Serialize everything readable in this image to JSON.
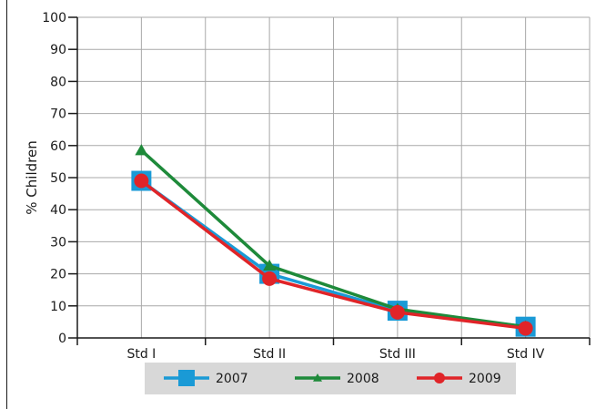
{
  "chart_data": {
    "type": "line",
    "categories": [
      "Std I",
      "Std II",
      "Std III",
      "Std IV"
    ],
    "ylabel": "% Children",
    "ylim": [
      0,
      100
    ],
    "yticks": [
      0,
      10,
      20,
      30,
      40,
      50,
      60,
      70,
      80,
      90,
      100
    ],
    "grid": true,
    "legend_position": "bottom",
    "series": [
      {
        "name": "2007",
        "values": [
          49,
          20,
          8.5,
          3.5
        ],
        "color": "#1a9ad6",
        "marker": "square"
      },
      {
        "name": "2008",
        "values": [
          58.5,
          22.5,
          9,
          3.5
        ],
        "color": "#1e8a3a",
        "marker": "triangle"
      },
      {
        "name": "2009",
        "values": [
          49,
          18.5,
          8,
          3
        ],
        "color": "#e02428",
        "marker": "circle"
      }
    ]
  }
}
